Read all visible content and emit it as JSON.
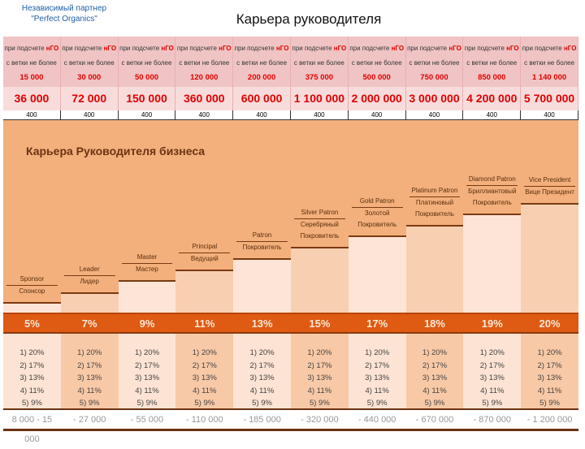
{
  "partner": [
    "Независимый партнер",
    "\"Perfect Organics\""
  ],
  "title": "Карьера руководителя",
  "header": {
    "line1": "при подсчете ",
    "ngo": "нГО",
    "line2": "с ветки не более"
  },
  "limits": [
    "15 000",
    "30 000",
    "50 000",
    "120 000",
    "200 000",
    "375 000",
    "500 000",
    "750 000",
    "850 000",
    "1 140 000"
  ],
  "volumes": [
    "36 000",
    "72 000",
    "150 000",
    "360 000",
    "600 000",
    "1 100 000",
    "2 000 000",
    "3 000 000",
    "4 200 000",
    "5 700 000"
  ],
  "points": [
    "400",
    "400",
    "400",
    "400",
    "400",
    "400",
    "400",
    "400",
    "400",
    "400"
  ],
  "career_title": "Карьера Руководителя бизнеса",
  "ranks": [
    {
      "en": "Sponsor",
      "ru": "Спонсор"
    },
    {
      "en": "Leader",
      "ru": "Лидер"
    },
    {
      "en": "Master",
      "ru": "Мастер"
    },
    {
      "en": "Principal",
      "ru": "Ведущий"
    },
    {
      "en": "Patron",
      "ru": "Покровитель"
    },
    {
      "en": "Silver Patron",
      "ru": "Серебряный Покровитель"
    },
    {
      "en": "Gold Patron",
      "ru": "Золотой Покровитель"
    },
    {
      "en": "Platinum Patron",
      "ru": "Платиновый Покровитель"
    },
    {
      "en": "Diamond Patron",
      "ru": "Бриллиантовый Покровитель"
    },
    {
      "en": "Vice President",
      "ru": "Вице Президент"
    }
  ],
  "percents": [
    "5%",
    "7%",
    "9%",
    "11%",
    "13%",
    "15%",
    "17%",
    "18%",
    "19%",
    "20%"
  ],
  "bonus_levels": [
    "1) 20%",
    "2) 17%",
    "3) 13%",
    "4) 11%",
    "5) 9%"
  ],
  "incomes": [
    "8 000 - 15 000",
    "- 27 000",
    "- 55 000",
    "- 110 000",
    "- 185 000",
    "- 320 000",
    "- 440 000",
    "- 670 000",
    "- 870 000",
    "- 1 200 000"
  ]
}
